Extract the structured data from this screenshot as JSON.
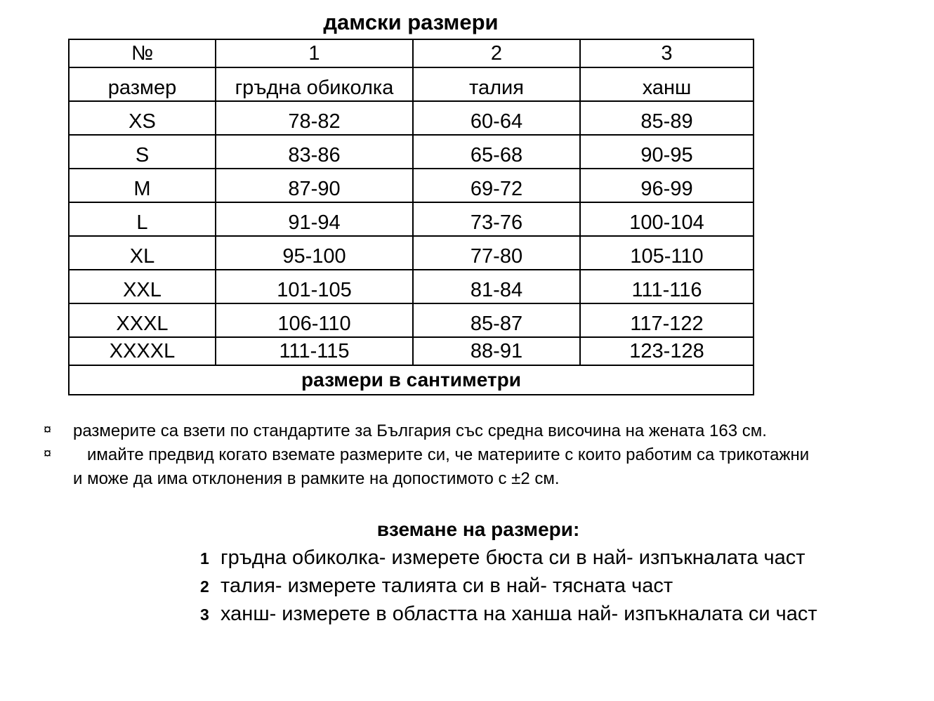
{
  "title": "дамски размери",
  "table": {
    "numbers": [
      "№",
      "1",
      "2",
      "3"
    ],
    "headers": [
      "размер",
      "гръдна обиколка",
      "талия",
      "ханш"
    ],
    "rows": [
      [
        "XS",
        "78-82",
        "60-64",
        "85-89"
      ],
      [
        "S",
        "83-86",
        "65-68",
        "90-95"
      ],
      [
        "M",
        "87-90",
        "69-72",
        "96-99"
      ],
      [
        "L",
        "91-94",
        "73-76",
        "100-104"
      ],
      [
        "XL",
        "95-100",
        "77-80",
        "105-110"
      ],
      [
        "XXL",
        "101-105",
        "81-84",
        "111-116"
      ],
      [
        "XXXL",
        "106-110",
        "85-87",
        "117-122"
      ],
      [
        "XXXXL",
        "111-115",
        "88-91",
        "123-128"
      ]
    ],
    "footer": "размери в сантиметри"
  },
  "notes": {
    "bullet": "¤",
    "line1": "размерите са взети по стандартите за България със средна височина на жената 163 см.",
    "line2": "имайте предвид когато вземате размерите си, че материите с които работим са трикотажни",
    "line3": "и може да има отклонения в рамките на допостимото с ±2 см."
  },
  "howto": {
    "title": "вземане на размери:",
    "steps": [
      {
        "n": "1",
        "text": "гръдна обиколка- измерете бюста си в най- изпъкналата част"
      },
      {
        "n": "2",
        "text": "талия- измерете талията си в най- тясната част"
      },
      {
        "n": "3",
        "text": "ханш- измерете в областта на ханша най- изпъкналата си част"
      }
    ]
  }
}
